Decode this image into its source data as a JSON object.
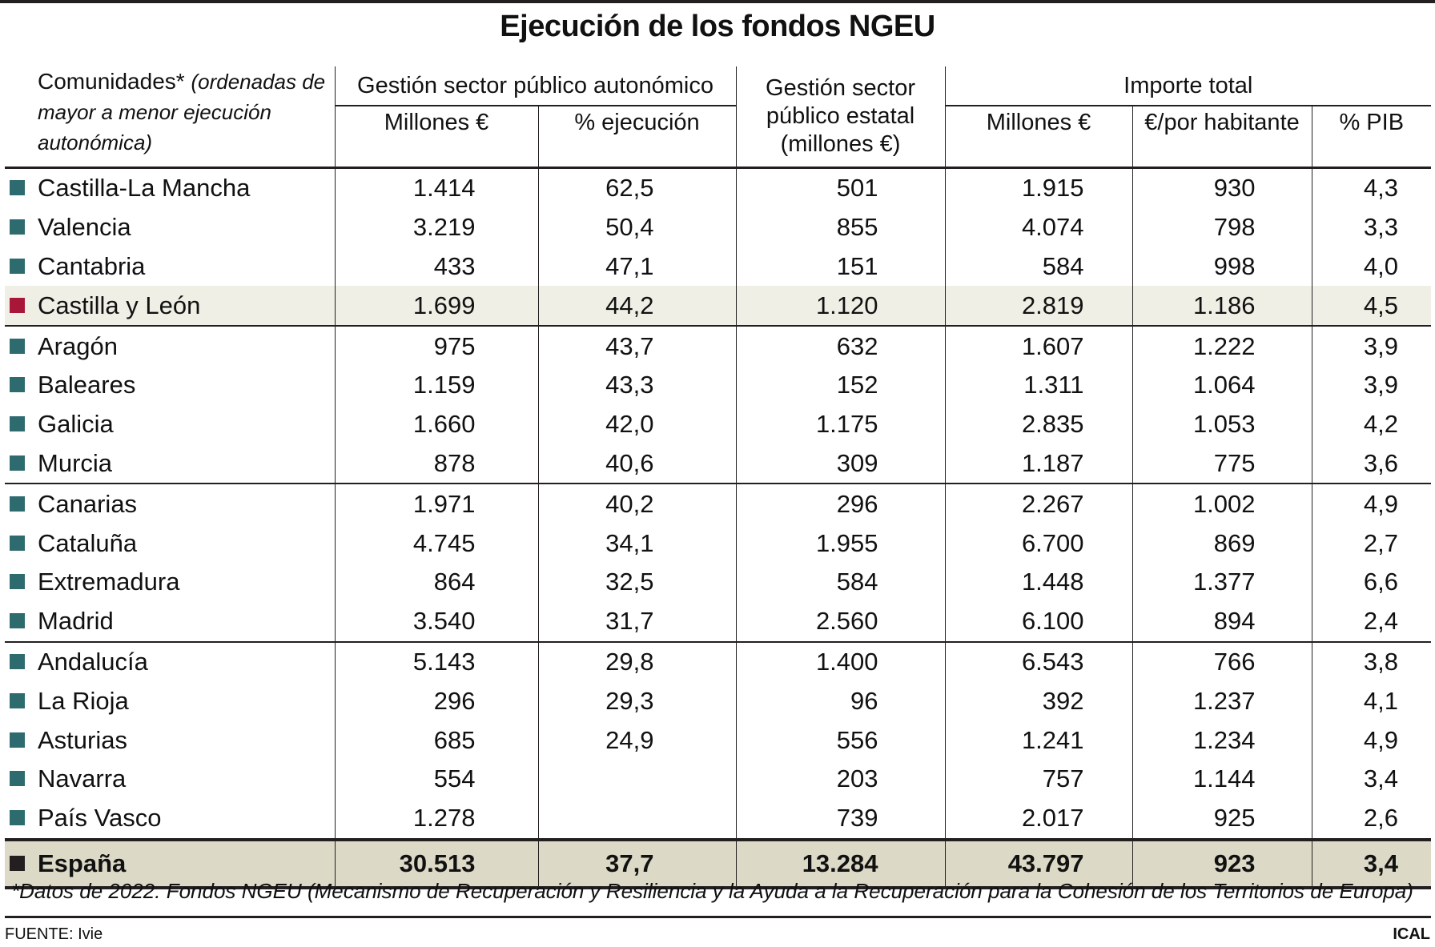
{
  "title": "Ejecución de los fondos NGEU",
  "header": {
    "corner_main": "Comunidades*",
    "corner_note": "(ordenadas de mayor a menor ejecución autonómica)",
    "group_autonomico": "Gestión sector público autonómico",
    "group_estatal": "Gestión sector público estatal (millones €)",
    "group_total": "Importe total",
    "aut_millones": "Millones €",
    "aut_pct": "% ejecución",
    "tot_millones": "Millones €",
    "tot_hab": "€/por habitante",
    "tot_pib": "% PIB"
  },
  "colors": {
    "default_marker": "#2e6b6e",
    "highlight_marker": "#a8173a",
    "total_marker": "#231f20",
    "highlight_row": "#efefe6",
    "total_row": "#dcd9c6"
  },
  "rows": [
    {
      "name": "Castilla-La Mancha",
      "aut_millones": "1.414",
      "aut_pct": "62,5",
      "estatal": "501",
      "tot_millones": "1.915",
      "tot_hab": "930",
      "pib": "4,3"
    },
    {
      "name": "Valencia",
      "aut_millones": "3.219",
      "aut_pct": "50,4",
      "estatal": "855",
      "tot_millones": "4.074",
      "tot_hab": "798",
      "pib": "3,3"
    },
    {
      "name": "Cantabria",
      "aut_millones": "433",
      "aut_pct": "47,1",
      "estatal": "151",
      "tot_millones": "584",
      "tot_hab": "998",
      "pib": "4,0"
    },
    {
      "name": "Castilla y León",
      "aut_millones": "1.699",
      "aut_pct": "44,2",
      "estatal": "1.120",
      "tot_millones": "2.819",
      "tot_hab": "1.186",
      "pib": "4,5"
    },
    {
      "name": "Aragón",
      "aut_millones": "975",
      "aut_pct": "43,7",
      "estatal": "632",
      "tot_millones": "1.607",
      "tot_hab": "1.222",
      "pib": "3,9"
    },
    {
      "name": "Baleares",
      "aut_millones": "1.159",
      "aut_pct": "43,3",
      "estatal": "152",
      "tot_millones": "1.311",
      "tot_hab": "1.064",
      "pib": "3,9"
    },
    {
      "name": "Galicia",
      "aut_millones": "1.660",
      "aut_pct": "42,0",
      "estatal": "1.175",
      "tot_millones": "2.835",
      "tot_hab": "1.053",
      "pib": "4,2"
    },
    {
      "name": "Murcia",
      "aut_millones": "878",
      "aut_pct": "40,6",
      "estatal": "309",
      "tot_millones": "1.187",
      "tot_hab": "775",
      "pib": "3,6"
    },
    {
      "name": "Canarias",
      "aut_millones": "1.971",
      "aut_pct": "40,2",
      "estatal": "296",
      "tot_millones": "2.267",
      "tot_hab": "1.002",
      "pib": "4,9"
    },
    {
      "name": "Cataluña",
      "aut_millones": "4.745",
      "aut_pct": "34,1",
      "estatal": "1.955",
      "tot_millones": "6.700",
      "tot_hab": "869",
      "pib": "2,7"
    },
    {
      "name": "Extremadura",
      "aut_millones": "864",
      "aut_pct": "32,5",
      "estatal": "584",
      "tot_millones": "1.448",
      "tot_hab": "1.377",
      "pib": "6,6"
    },
    {
      "name": "Madrid",
      "aut_millones": "3.540",
      "aut_pct": "31,7",
      "estatal": "2.560",
      "tot_millones": "6.100",
      "tot_hab": "894",
      "pib": "2,4"
    },
    {
      "name": "Andalucía",
      "aut_millones": "5.143",
      "aut_pct": "29,8",
      "estatal": "1.400",
      "tot_millones": "6.543",
      "tot_hab": "766",
      "pib": "3,8"
    },
    {
      "name": "La Rioja",
      "aut_millones": "296",
      "aut_pct": "29,3",
      "estatal": "96",
      "tot_millones": "392",
      "tot_hab": "1.237",
      "pib": "4,1"
    },
    {
      "name": "Asturias",
      "aut_millones": "685",
      "aut_pct": "24,9",
      "estatal": "556",
      "tot_millones": "1.241",
      "tot_hab": "1.234",
      "pib": "4,9"
    },
    {
      "name": "Navarra",
      "aut_millones": "554",
      "aut_pct": "",
      "estatal": "203",
      "tot_millones": "757",
      "tot_hab": "1.144",
      "pib": "3,4"
    },
    {
      "name": "País Vasco",
      "aut_millones": "1.278",
      "aut_pct": "",
      "estatal": "739",
      "tot_millones": "2.017",
      "tot_hab": "925",
      "pib": "2,6"
    }
  ],
  "total": {
    "name": "España",
    "aut_millones": "30.513",
    "aut_pct": "37,7",
    "estatal": "13.284",
    "tot_millones": "43.797",
    "tot_hab": "923",
    "pib": "3,4"
  },
  "footnote": "*Datos de 2022. Fondos NGEU (Mecanismo de Recuperación y Resiliencia y la Ayuda a la Recuperación para la Cohesión de los Territorios de Europa)",
  "source": "FUENTE: Ivie",
  "brand": "ICAL"
}
